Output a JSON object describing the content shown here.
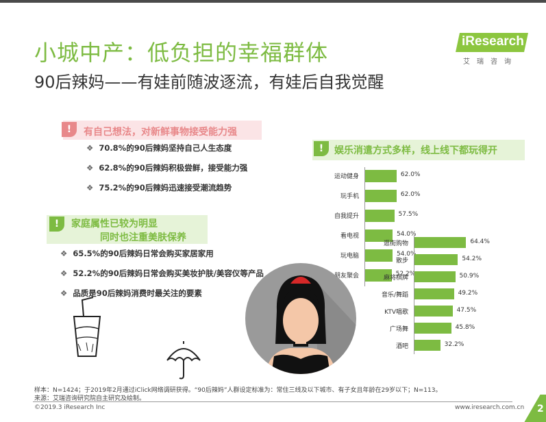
{
  "header": {
    "title": "小城中产：低负担的幸福群体",
    "subtitle": "90后辣妈——有娃前随波逐流，有娃后自我觉醒",
    "logo_text": "iResearch",
    "logo_cn": "艾瑞咨询"
  },
  "section1": {
    "badge": "!",
    "heading": "有自己想法，对新鲜事物接受能力强",
    "bullets": [
      "70.8%的90后辣妈坚持自己人生态度",
      "62.8%的90后辣妈积极尝鲜，接受能力强",
      "75.2%的90后辣妈迅速接受潮流趋势"
    ]
  },
  "section2": {
    "badge": "!",
    "heading_line1": "家庭属性已较为明显",
    "heading_line2": "同时也注重美肤保养",
    "bullets": [
      "65.5%的90后辣妈日常会购买家居家用",
      "52.2%的90后辣妈日常会购买美妆护肤/美容仪等产品",
      "品质是90后辣妈消费时最关注的要素"
    ]
  },
  "section3": {
    "badge": "!",
    "heading": "娱乐消遣方式多样，线上线下都玩得开"
  },
  "chart_data": [
    {
      "type": "bar",
      "orientation": "horizontal",
      "categories": [
        "运动健身",
        "玩手机",
        "自我提升",
        "看电视",
        "玩电脑",
        "朋友聚会"
      ],
      "values": [
        62.0,
        62.0,
        57.5,
        54.0,
        54.0,
        52.2
      ],
      "labels": [
        "62.0%",
        "62.0%",
        "57.5%",
        "54.0%",
        "54.0%",
        "52.2%"
      ],
      "color": "#7dbb42"
    },
    {
      "type": "bar",
      "orientation": "horizontal",
      "categories": [
        "逛街购物",
        "散步",
        "麻将棋牌",
        "音乐/舞蹈",
        "KTV唱歌",
        "广场舞",
        "酒吧"
      ],
      "values": [
        64.4,
        54.2,
        50.9,
        49.2,
        47.5,
        45.8,
        32.2
      ],
      "labels": [
        "64.4%",
        "54.2%",
        "50.9%",
        "49.2%",
        "47.5%",
        "45.8%",
        "32.2%"
      ],
      "color": "#7dbb42"
    }
  ],
  "footer": {
    "sample": "样本：N=1424；于2019年2月通过iClick网络调研获得。“90后辣妈”人群设定标准为：常住三线及以下城市、有子女且年龄在29岁以下；N=113。",
    "source": "来源：艾瑞咨询研究院自主研究及绘制。",
    "copyright": "©2019.3 iResearch Inc",
    "url": "www.iresearch.com.cn",
    "page": "2"
  },
  "colors": {
    "green": "#7dbb42",
    "pink": "#e8888a",
    "pink_bg": "#fbe4e6",
    "green_bg": "#e6f3d8"
  }
}
